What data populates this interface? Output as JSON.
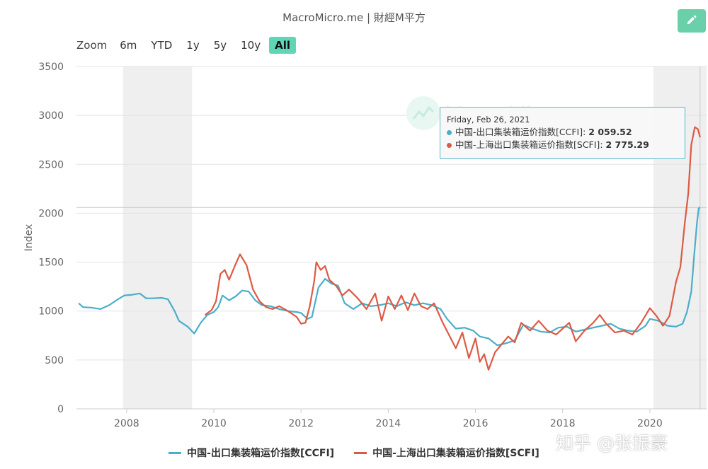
{
  "header": {
    "title": "MacroMicro.me | 財經M平方",
    "edit_icon": "pencil-icon"
  },
  "zoom": {
    "label": "Zoom",
    "buttons": [
      "6m",
      "YTD",
      "1y",
      "5y",
      "10y",
      "All"
    ],
    "active": "All"
  },
  "tooltip": {
    "date": "Friday, Feb 26, 2021",
    "rows": [
      {
        "name": "中国-出口集装箱运价指数[CCFI]",
        "value": "2 059.52"
      },
      {
        "name": "中国-上海出口集装箱运价指数[SCFI]",
        "value": "2 775.29"
      }
    ]
  },
  "watermark": {
    "logo_text": "MacroMicro",
    "corner_text": "知乎 @张振豪"
  },
  "chart_data": {
    "type": "line",
    "ylabel": "Index",
    "xlabel": "",
    "ylim": [
      0,
      3500
    ],
    "yticks": [
      "0",
      "500",
      "1000",
      "1500",
      "2000",
      "2500",
      "3000",
      "3500"
    ],
    "xticks": [
      "2008",
      "2010",
      "2012",
      "2014",
      "2016",
      "2018",
      "2020"
    ],
    "xlim": [
      2006.85,
      2021.3
    ],
    "grid": true,
    "legend_position": "bottom",
    "shaded_periods": [
      [
        2007.92,
        2009.5
      ],
      [
        2020.08,
        2021.3
      ]
    ],
    "crosshair_x": 2021.15,
    "crosshair_y": 2059.52,
    "colors": {
      "ccfi": "#4aaecb",
      "scfi": "#dc5a44"
    },
    "series": [
      {
        "name": "中国-出口集装箱运价指数[CCFI]",
        "color": "#4aaecb",
        "points": [
          [
            2006.9,
            1080
          ],
          [
            2007.0,
            1040
          ],
          [
            2007.2,
            1035
          ],
          [
            2007.4,
            1020
          ],
          [
            2007.6,
            1060
          ],
          [
            2007.8,
            1120
          ],
          [
            2007.95,
            1160
          ],
          [
            2008.1,
            1165
          ],
          [
            2008.3,
            1180
          ],
          [
            2008.45,
            1130
          ],
          [
            2008.6,
            1130
          ],
          [
            2008.8,
            1135
          ],
          [
            2008.95,
            1120
          ],
          [
            2009.1,
            1000
          ],
          [
            2009.2,
            900
          ],
          [
            2009.4,
            840
          ],
          [
            2009.55,
            770
          ],
          [
            2009.7,
            880
          ],
          [
            2009.85,
            960
          ],
          [
            2010.0,
            990
          ],
          [
            2010.1,
            1040
          ],
          [
            2010.2,
            1160
          ],
          [
            2010.35,
            1110
          ],
          [
            2010.5,
            1150
          ],
          [
            2010.65,
            1210
          ],
          [
            2010.8,
            1200
          ],
          [
            2010.95,
            1110
          ],
          [
            2011.1,
            1060
          ],
          [
            2011.3,
            1050
          ],
          [
            2011.5,
            1020
          ],
          [
            2011.7,
            1000
          ],
          [
            2011.9,
            990
          ],
          [
            2012.0,
            980
          ],
          [
            2012.15,
            920
          ],
          [
            2012.25,
            940
          ],
          [
            2012.4,
            1240
          ],
          [
            2012.55,
            1330
          ],
          [
            2012.7,
            1280
          ],
          [
            2012.85,
            1260
          ],
          [
            2013.0,
            1080
          ],
          [
            2013.2,
            1020
          ],
          [
            2013.4,
            1080
          ],
          [
            2013.6,
            1050
          ],
          [
            2013.8,
            1060
          ],
          [
            2014.0,
            1080
          ],
          [
            2014.2,
            1050
          ],
          [
            2014.4,
            1090
          ],
          [
            2014.6,
            1060
          ],
          [
            2014.8,
            1080
          ],
          [
            2015.0,
            1060
          ],
          [
            2015.2,
            1020
          ],
          [
            2015.35,
            920
          ],
          [
            2015.55,
            820
          ],
          [
            2015.75,
            830
          ],
          [
            2015.95,
            800
          ],
          [
            2016.1,
            740
          ],
          [
            2016.3,
            720
          ],
          [
            2016.5,
            650
          ],
          [
            2016.7,
            670
          ],
          [
            2016.9,
            700
          ],
          [
            2017.1,
            860
          ],
          [
            2017.3,
            820
          ],
          [
            2017.5,
            790
          ],
          [
            2017.7,
            780
          ],
          [
            2017.9,
            830
          ],
          [
            2018.1,
            840
          ],
          [
            2018.3,
            790
          ],
          [
            2018.5,
            810
          ],
          [
            2018.7,
            830
          ],
          [
            2018.9,
            850
          ],
          [
            2019.1,
            870
          ],
          [
            2019.3,
            820
          ],
          [
            2019.5,
            800
          ],
          [
            2019.7,
            790
          ],
          [
            2019.9,
            850
          ],
          [
            2020.0,
            920
          ],
          [
            2020.2,
            900
          ],
          [
            2020.4,
            850
          ],
          [
            2020.6,
            840
          ],
          [
            2020.75,
            870
          ],
          [
            2020.85,
            990
          ],
          [
            2020.95,
            1200
          ],
          [
            2021.02,
            1600
          ],
          [
            2021.08,
            1900
          ],
          [
            2021.12,
            2050
          ],
          [
            2021.15,
            2059.52
          ]
        ]
      },
      {
        "name": "中国-上海出口集装箱运价指数[SCFI]",
        "color": "#dc5a44",
        "points": [
          [
            2009.8,
            960
          ],
          [
            2009.95,
            1010
          ],
          [
            2010.05,
            1100
          ],
          [
            2010.15,
            1380
          ],
          [
            2010.25,
            1420
          ],
          [
            2010.35,
            1320
          ],
          [
            2010.5,
            1480
          ],
          [
            2010.6,
            1580
          ],
          [
            2010.75,
            1470
          ],
          [
            2010.9,
            1220
          ],
          [
            2011.05,
            1100
          ],
          [
            2011.2,
            1040
          ],
          [
            2011.35,
            1020
          ],
          [
            2011.5,
            1050
          ],
          [
            2011.7,
            1000
          ],
          [
            2011.9,
            940
          ],
          [
            2012.0,
            870
          ],
          [
            2012.1,
            880
          ],
          [
            2012.2,
            1050
          ],
          [
            2012.3,
            1300
          ],
          [
            2012.35,
            1500
          ],
          [
            2012.45,
            1420
          ],
          [
            2012.55,
            1460
          ],
          [
            2012.65,
            1320
          ],
          [
            2012.8,
            1260
          ],
          [
            2012.95,
            1160
          ],
          [
            2013.1,
            1220
          ],
          [
            2013.3,
            1130
          ],
          [
            2013.5,
            1020
          ],
          [
            2013.7,
            1180
          ],
          [
            2013.85,
            900
          ],
          [
            2014.0,
            1150
          ],
          [
            2014.15,
            1020
          ],
          [
            2014.3,
            1160
          ],
          [
            2014.45,
            1010
          ],
          [
            2014.6,
            1180
          ],
          [
            2014.75,
            1050
          ],
          [
            2014.9,
            1020
          ],
          [
            2015.05,
            1080
          ],
          [
            2015.25,
            880
          ],
          [
            2015.4,
            750
          ],
          [
            2015.55,
            620
          ],
          [
            2015.7,
            780
          ],
          [
            2015.85,
            520
          ],
          [
            2016.0,
            720
          ],
          [
            2016.1,
            480
          ],
          [
            2016.2,
            560
          ],
          [
            2016.3,
            400
          ],
          [
            2016.45,
            580
          ],
          [
            2016.6,
            660
          ],
          [
            2016.75,
            740
          ],
          [
            2016.9,
            680
          ],
          [
            2017.05,
            880
          ],
          [
            2017.25,
            800
          ],
          [
            2017.45,
            900
          ],
          [
            2017.65,
            800
          ],
          [
            2017.85,
            760
          ],
          [
            2018.0,
            820
          ],
          [
            2018.15,
            880
          ],
          [
            2018.3,
            690
          ],
          [
            2018.5,
            800
          ],
          [
            2018.7,
            880
          ],
          [
            2018.85,
            960
          ],
          [
            2019.0,
            870
          ],
          [
            2019.2,
            780
          ],
          [
            2019.4,
            800
          ],
          [
            2019.6,
            760
          ],
          [
            2019.8,
            880
          ],
          [
            2020.0,
            1030
          ],
          [
            2020.15,
            950
          ],
          [
            2020.3,
            850
          ],
          [
            2020.45,
            950
          ],
          [
            2020.6,
            1300
          ],
          [
            2020.7,
            1450
          ],
          [
            2020.8,
            1900
          ],
          [
            2020.88,
            2200
          ],
          [
            2020.95,
            2700
          ],
          [
            2021.03,
            2880
          ],
          [
            2021.1,
            2860
          ],
          [
            2021.15,
            2775.29
          ]
        ]
      }
    ]
  }
}
